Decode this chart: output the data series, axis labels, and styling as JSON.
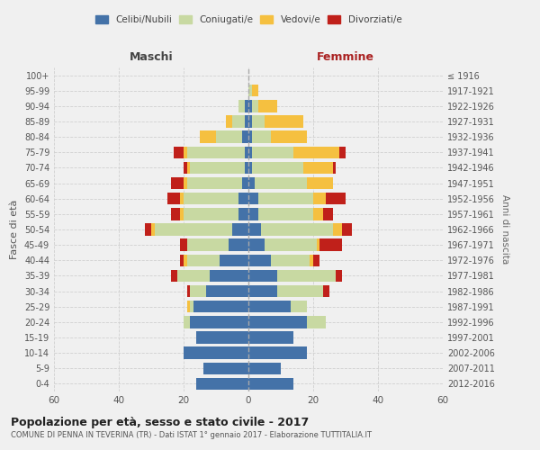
{
  "age_groups": [
    "0-4",
    "5-9",
    "10-14",
    "15-19",
    "20-24",
    "25-29",
    "30-34",
    "35-39",
    "40-44",
    "45-49",
    "50-54",
    "55-59",
    "60-64",
    "65-69",
    "70-74",
    "75-79",
    "80-84",
    "85-89",
    "90-94",
    "95-99",
    "100+"
  ],
  "birth_years": [
    "2012-2016",
    "2007-2011",
    "2002-2006",
    "1997-2001",
    "1992-1996",
    "1987-1991",
    "1982-1986",
    "1977-1981",
    "1972-1976",
    "1967-1971",
    "1962-1966",
    "1957-1961",
    "1952-1956",
    "1947-1951",
    "1942-1946",
    "1937-1941",
    "1932-1936",
    "1927-1931",
    "1922-1926",
    "1917-1921",
    "≤ 1916"
  ],
  "male": {
    "celibi": [
      16,
      14,
      20,
      16,
      18,
      17,
      13,
      12,
      9,
      6,
      5,
      3,
      3,
      2,
      1,
      1,
      2,
      1,
      1,
      0,
      0
    ],
    "coniugati": [
      0,
      0,
      0,
      0,
      2,
      1,
      5,
      10,
      10,
      13,
      24,
      17,
      17,
      17,
      17,
      18,
      8,
      4,
      2,
      0,
      0
    ],
    "vedovi": [
      0,
      0,
      0,
      0,
      0,
      1,
      0,
      0,
      1,
      0,
      1,
      1,
      1,
      1,
      1,
      1,
      5,
      2,
      0,
      0,
      0
    ],
    "divorziati": [
      0,
      0,
      0,
      0,
      0,
      0,
      1,
      2,
      1,
      2,
      2,
      3,
      4,
      4,
      1,
      3,
      0,
      0,
      0,
      0,
      0
    ]
  },
  "female": {
    "nubili": [
      14,
      10,
      18,
      14,
      18,
      13,
      9,
      9,
      7,
      5,
      4,
      3,
      3,
      2,
      1,
      1,
      1,
      1,
      1,
      0,
      0
    ],
    "coniugate": [
      0,
      0,
      0,
      0,
      6,
      5,
      14,
      18,
      12,
      16,
      22,
      17,
      17,
      16,
      16,
      13,
      6,
      4,
      2,
      1,
      0
    ],
    "vedove": [
      0,
      0,
      0,
      0,
      0,
      0,
      0,
      0,
      1,
      1,
      3,
      3,
      4,
      8,
      9,
      14,
      11,
      12,
      6,
      2,
      0
    ],
    "divorziate": [
      0,
      0,
      0,
      0,
      0,
      0,
      2,
      2,
      2,
      7,
      3,
      3,
      6,
      0,
      1,
      2,
      0,
      0,
      0,
      0,
      0
    ]
  },
  "colors": {
    "celibi": "#4472a8",
    "coniugati": "#c8d9a2",
    "vedovi": "#f5c040",
    "divorziati": "#c0201a"
  },
  "title": "Popolazione per età, sesso e stato civile - 2017",
  "subtitle": "COMUNE DI PENNA IN TEVERINA (TR) - Dati ISTAT 1° gennaio 2017 - Elaborazione TUTTITALIA.IT",
  "xlabel_left": "Maschi",
  "xlabel_right": "Femmine",
  "ylabel_left": "Fasce di età",
  "ylabel_right": "Anni di nascita",
  "xlim": 60,
  "bg_color": "#f0f0f0",
  "grid_color": "#d0d0d0"
}
